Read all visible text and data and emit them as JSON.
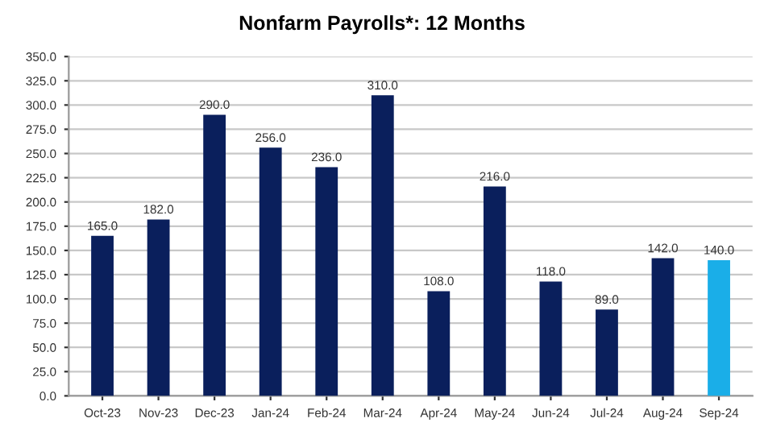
{
  "chart_data": {
    "type": "bar",
    "title": "Nonfarm Payrolls*: 12 Months",
    "categories": [
      "Oct-23",
      "Nov-23",
      "Dec-23",
      "Jan-24",
      "Feb-24",
      "Mar-24",
      "Apr-24",
      "May-24",
      "Jun-24",
      "Jul-24",
      "Aug-24",
      "Sep-24"
    ],
    "values": [
      165.0,
      182.0,
      290.0,
      256.0,
      236.0,
      310.0,
      108.0,
      216.0,
      118.0,
      89.0,
      142.0,
      140.0
    ],
    "colors": [
      "#0a1f5c",
      "#0a1f5c",
      "#0a1f5c",
      "#0a1f5c",
      "#0a1f5c",
      "#0a1f5c",
      "#0a1f5c",
      "#0a1f5c",
      "#0a1f5c",
      "#0a1f5c",
      "#0a1f5c",
      "#1aaee8"
    ],
    "value_labels": [
      "165.0",
      "182.0",
      "290.0",
      "256.0",
      "236.0",
      "310.0",
      "108.0",
      "216.0",
      "118.0",
      "89.0",
      "142.0",
      "140.0"
    ],
    "ylim": [
      0,
      350
    ],
    "yticks": [
      {
        "value": 0,
        "label": "0.0"
      },
      {
        "value": 25,
        "label": "25.0"
      },
      {
        "value": 50,
        "label": "50.0"
      },
      {
        "value": 75,
        "label": "75.0"
      },
      {
        "value": 100,
        "label": "100.0"
      },
      {
        "value": 125,
        "label": "125.0"
      },
      {
        "value": 150,
        "label": "150.0"
      },
      {
        "value": 175,
        "label": "175.0"
      },
      {
        "value": 200,
        "label": "200.0"
      },
      {
        "value": 225,
        "label": "225.0"
      },
      {
        "value": 250,
        "label": "250.0"
      },
      {
        "value": 275,
        "label": "275.0"
      },
      {
        "value": 300,
        "label": "300.0"
      },
      {
        "value": 325,
        "label": "325.0"
      },
      {
        "value": 350,
        "label": "350.0"
      }
    ],
    "grid": "y"
  }
}
